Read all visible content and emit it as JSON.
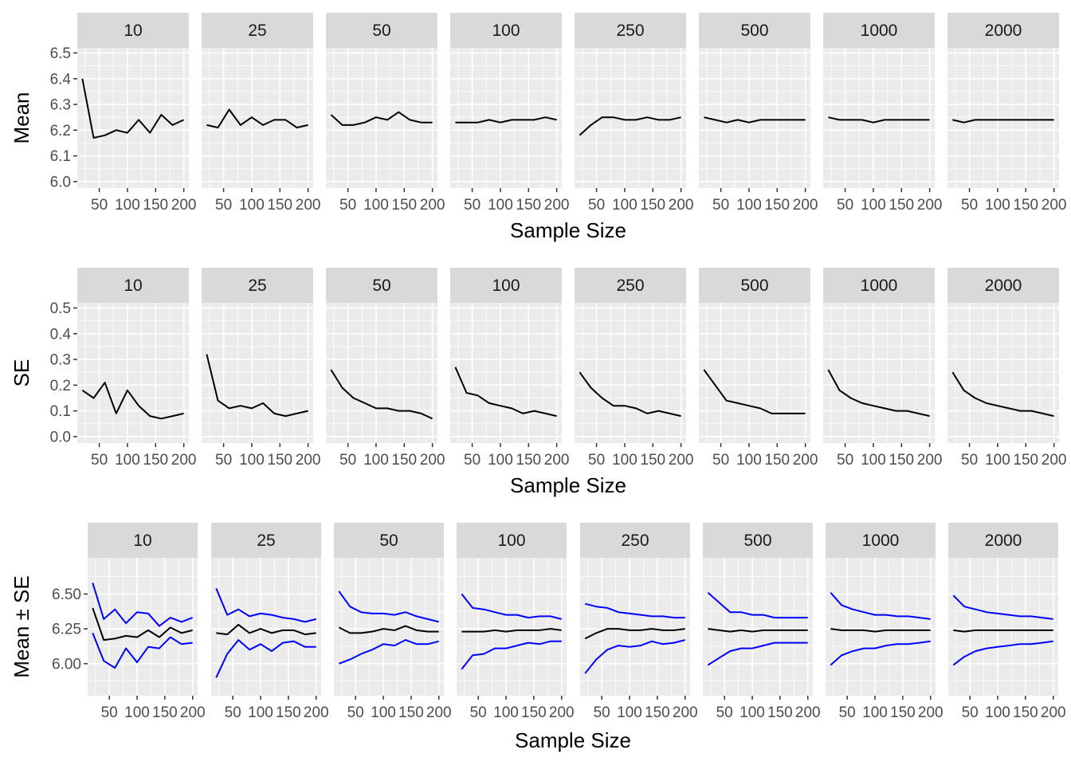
{
  "chart_data": {
    "type": "line",
    "facets": [
      "10",
      "25",
      "50",
      "100",
      "250",
      "500",
      "1000",
      "2000"
    ],
    "x": [
      20,
      40,
      60,
      80,
      100,
      120,
      140,
      160,
      180,
      200
    ],
    "xticks": [
      50,
      100,
      150,
      200
    ],
    "xtick_labels": [
      "50",
      "100",
      "150",
      "200"
    ],
    "xlim": [
      11,
      209
    ],
    "xlabel": "Sample Size",
    "colors": {
      "mean": "#000000",
      "band": "#0000FF",
      "panel": "#EBEBEB",
      "strip": "#D9D9D9",
      "grid": "#FFFFFF"
    },
    "mean": [
      [
        6.4,
        6.17,
        6.18,
        6.2,
        6.19,
        6.24,
        6.19,
        6.26,
        6.22,
        6.24
      ],
      [
        6.22,
        6.21,
        6.28,
        6.22,
        6.25,
        6.22,
        6.24,
        6.24,
        6.21,
        6.22
      ],
      [
        6.26,
        6.22,
        6.22,
        6.23,
        6.25,
        6.24,
        6.27,
        6.24,
        6.23,
        6.23
      ],
      [
        6.23,
        6.23,
        6.23,
        6.24,
        6.23,
        6.24,
        6.24,
        6.24,
        6.25,
        6.24
      ],
      [
        6.18,
        6.22,
        6.25,
        6.25,
        6.24,
        6.24,
        6.25,
        6.24,
        6.24,
        6.25
      ],
      [
        6.25,
        6.24,
        6.23,
        6.24,
        6.23,
        6.24,
        6.24,
        6.24,
        6.24,
        6.24
      ],
      [
        6.25,
        6.24,
        6.24,
        6.24,
        6.23,
        6.24,
        6.24,
        6.24,
        6.24,
        6.24
      ],
      [
        6.24,
        6.23,
        6.24,
        6.24,
        6.24,
        6.24,
        6.24,
        6.24,
        6.24,
        6.24
      ]
    ],
    "se": [
      [
        0.18,
        0.15,
        0.21,
        0.09,
        0.18,
        0.12,
        0.08,
        0.07,
        0.08,
        0.09
      ],
      [
        0.32,
        0.14,
        0.11,
        0.12,
        0.11,
        0.13,
        0.09,
        0.08,
        0.09,
        0.1
      ],
      [
        0.26,
        0.19,
        0.15,
        0.13,
        0.11,
        0.11,
        0.1,
        0.1,
        0.09,
        0.07
      ],
      [
        0.27,
        0.17,
        0.16,
        0.13,
        0.12,
        0.11,
        0.09,
        0.1,
        0.09,
        0.08
      ],
      [
        0.25,
        0.19,
        0.15,
        0.12,
        0.12,
        0.11,
        0.09,
        0.1,
        0.09,
        0.08
      ],
      [
        0.26,
        0.2,
        0.14,
        0.13,
        0.12,
        0.11,
        0.09,
        0.09,
        0.09,
        0.09
      ],
      [
        0.26,
        0.18,
        0.15,
        0.13,
        0.12,
        0.11,
        0.1,
        0.1,
        0.09,
        0.08
      ],
      [
        0.25,
        0.18,
        0.15,
        0.13,
        0.12,
        0.11,
        0.1,
        0.1,
        0.09,
        0.08
      ]
    ],
    "rows": [
      {
        "ylabel": "Mean",
        "kind": "mean",
        "ylim": [
          5.975,
          6.52
        ],
        "yticks": [
          6.0,
          6.1,
          6.2,
          6.3,
          6.4,
          6.5
        ],
        "ytick_labels": [
          "6.0",
          "6.1",
          "6.2",
          "6.3",
          "6.4",
          "6.5"
        ],
        "yminor": [
          6.05,
          6.15,
          6.25,
          6.35,
          6.45
        ]
      },
      {
        "ylabel": "SE",
        "kind": "se",
        "ylim": [
          -0.025,
          0.52
        ],
        "yticks": [
          0.0,
          0.1,
          0.2,
          0.3,
          0.4,
          0.5
        ],
        "ytick_labels": [
          "0.0",
          "0.1",
          "0.2",
          "0.3",
          "0.4",
          "0.5"
        ],
        "yminor": [
          0.05,
          0.15,
          0.25,
          0.35,
          0.45
        ]
      },
      {
        "ylabel": "Mean ± SE",
        "kind": "band",
        "ylim": [
          5.77,
          6.76
        ],
        "yticks": [
          6.0,
          6.25,
          6.5
        ],
        "ytick_labels": [
          "6.00",
          "6.25",
          "6.50"
        ],
        "yminor": [
          5.875,
          6.125,
          6.375,
          6.625
        ]
      }
    ]
  }
}
